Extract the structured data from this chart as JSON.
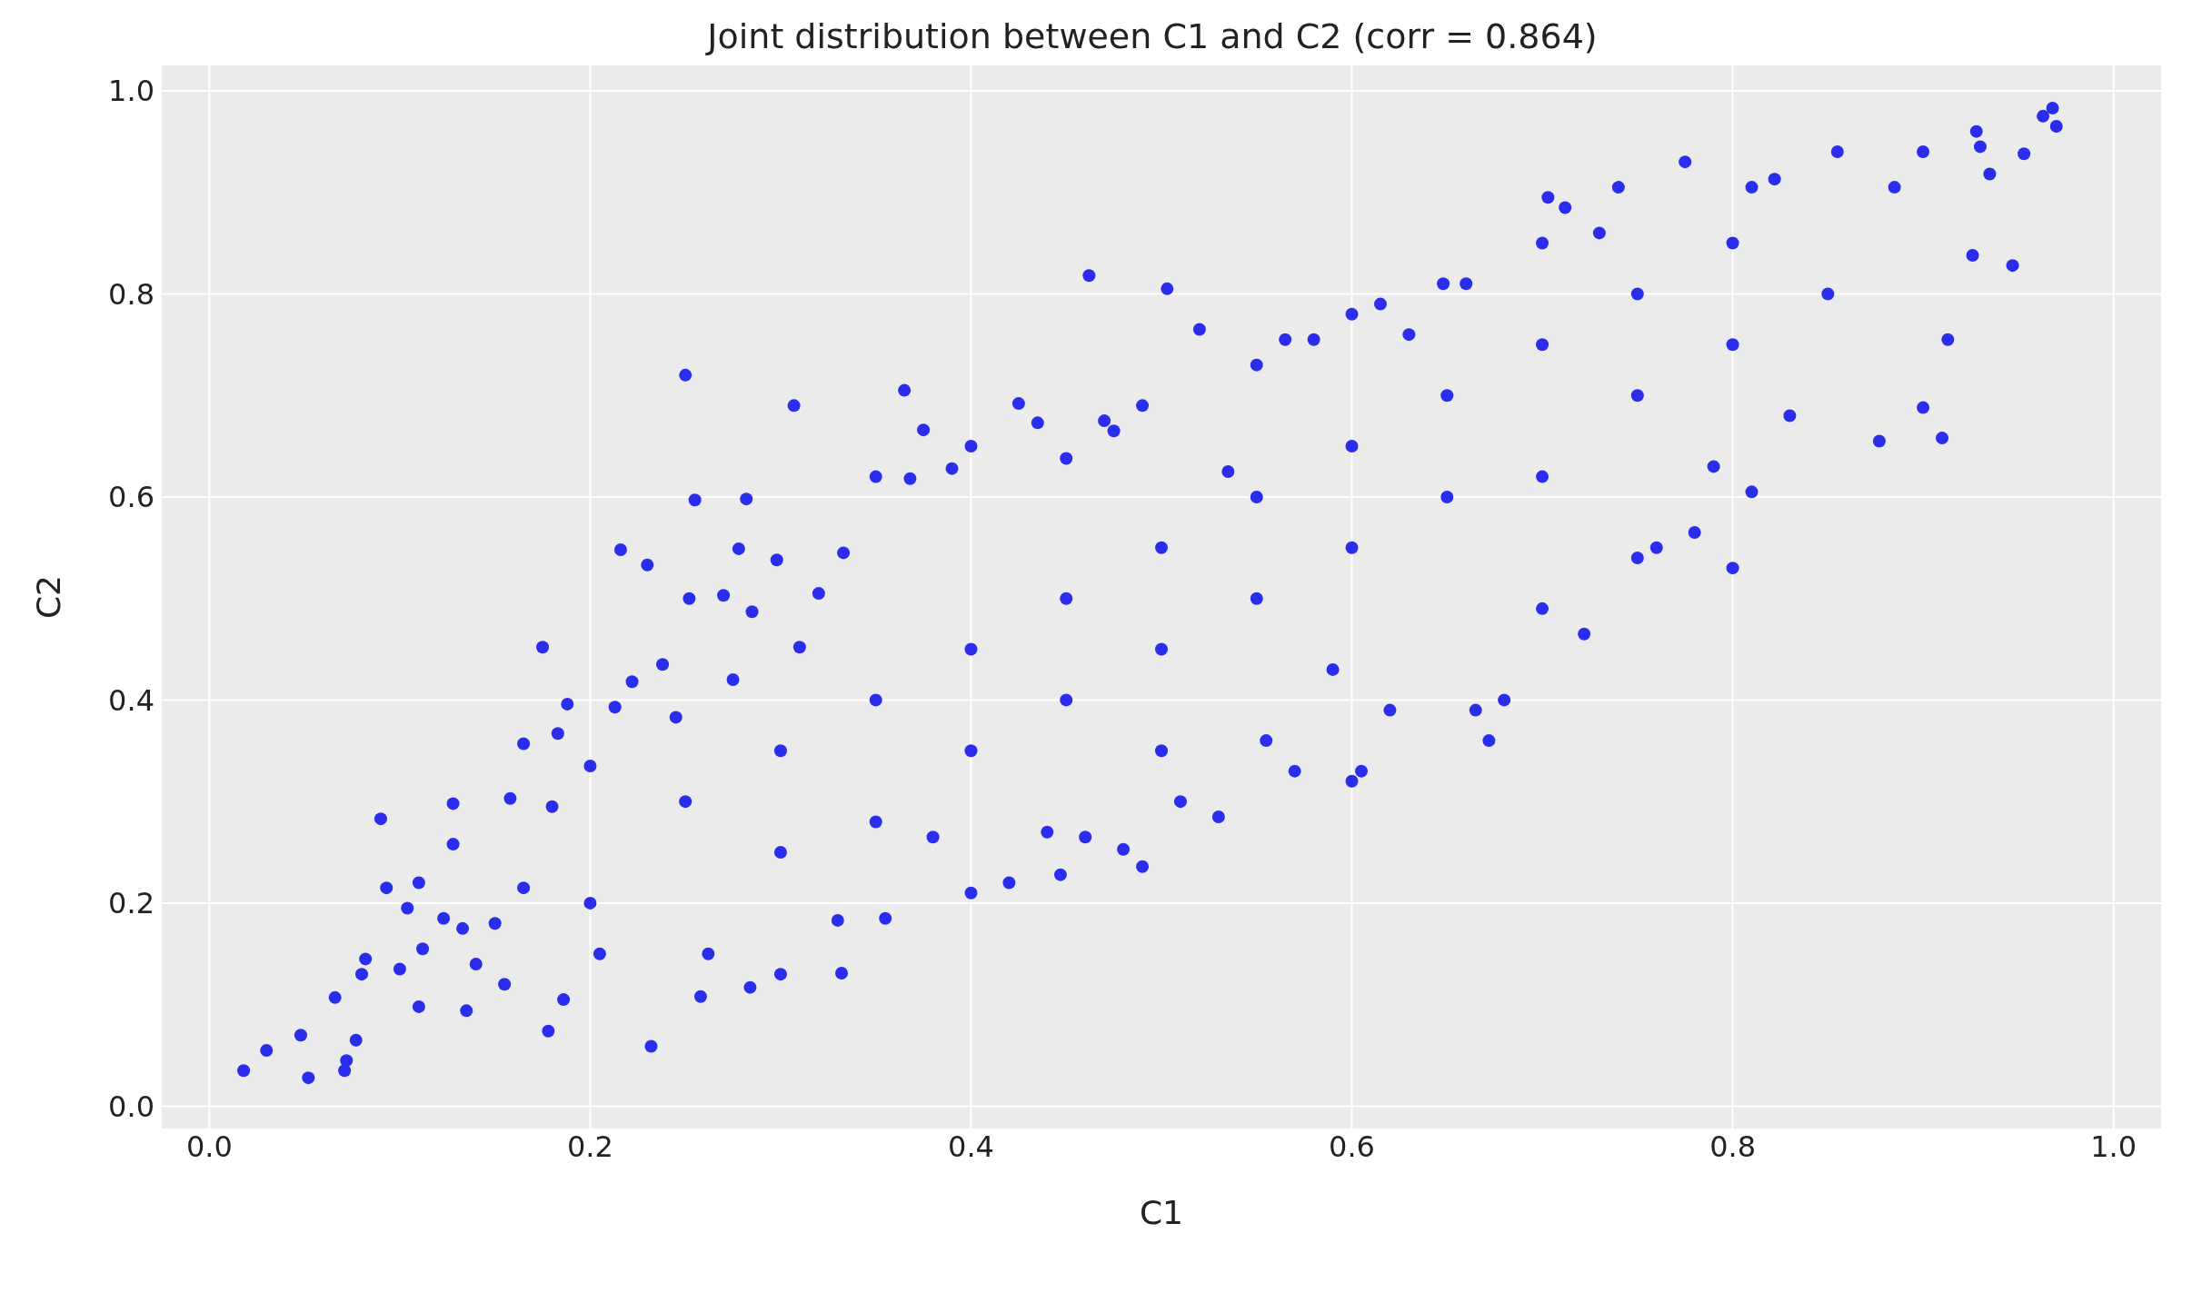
{
  "chart_data": {
    "type": "scatter",
    "title": "Joint distribution between C1 and C2 (corr = 0.864)",
    "xlabel": "C1",
    "ylabel": "C2",
    "xlim": [
      -0.025,
      1.025
    ],
    "ylim": [
      -0.022,
      1.025
    ],
    "xticks": [
      {
        "value": 0,
        "label": "0.0"
      },
      0.2,
      0.4,
      0.6,
      0.8,
      {
        "value": 1,
        "label": "1.0"
      }
    ],
    "yticks": [
      {
        "value": 0,
        "label": "0.0"
      },
      0.2,
      0.4,
      0.6,
      0.8,
      {
        "value": 1,
        "label": "1.0"
      }
    ],
    "grid": true,
    "legend": false,
    "marker": "circle",
    "series": [
      {
        "color": "#2a2eec",
        "x": [
          0.018,
          0.03,
          0.048,
          0.052,
          0.066,
          0.071,
          0.072,
          0.077,
          0.08,
          0.082,
          0.09,
          0.093,
          0.1,
          0.104,
          0.11,
          0.11,
          0.112,
          0.123,
          0.128,
          0.128,
          0.133,
          0.135,
          0.14,
          0.155,
          0.158,
          0.165,
          0.165,
          0.175,
          0.178,
          0.18,
          0.183,
          0.186,
          0.188,
          0.2,
          0.205,
          0.213,
          0.216,
          0.222,
          0.23,
          0.232,
          0.238,
          0.245,
          0.25,
          0.252,
          0.255,
          0.258,
          0.262,
          0.27,
          0.275,
          0.278,
          0.282,
          0.284,
          0.285,
          0.298,
          0.3,
          0.307,
          0.31,
          0.32,
          0.33,
          0.332,
          0.333,
          0.35,
          0.355,
          0.365,
          0.368,
          0.375,
          0.38,
          0.39,
          0.4,
          0.4,
          0.42,
          0.425,
          0.435,
          0.44,
          0.447,
          0.45,
          0.46,
          0.462,
          0.47,
          0.475,
          0.48,
          0.49,
          0.49,
          0.5,
          0.503,
          0.51,
          0.52,
          0.53,
          0.535,
          0.55,
          0.555,
          0.57,
          0.565,
          0.58,
          0.59,
          0.6,
          0.605,
          0.6,
          0.615,
          0.62,
          0.63,
          0.648,
          0.66,
          0.665,
          0.672,
          0.68,
          0.7,
          0.7,
          0.703,
          0.712,
          0.722,
          0.73,
          0.74,
          0.75,
          0.76,
          0.775,
          0.78,
          0.79,
          0.8,
          0.81,
          0.81,
          0.822,
          0.83,
          0.855,
          0.877,
          0.885,
          0.9,
          0.9,
          0.91,
          0.913,
          0.926,
          0.928,
          0.93,
          0.935,
          0.947,
          0.953,
          0.963,
          0.968,
          0.97,
          0.2,
          0.25,
          0.3,
          0.35,
          0.4,
          0.45,
          0.5,
          0.55,
          0.6,
          0.65,
          0.7,
          0.75,
          0.8,
          0.3,
          0.4,
          0.5,
          0.6,
          0.7,
          0.8,
          0.85,
          0.15,
          0.35,
          0.45,
          0.55,
          0.65,
          0.75
        ],
        "values": [
          0.035,
          0.055,
          0.07,
          0.028,
          0.107,
          0.035,
          0.045,
          0.065,
          0.13,
          0.145,
          0.283,
          0.215,
          0.135,
          0.195,
          0.098,
          0.22,
          0.155,
          0.185,
          0.298,
          0.258,
          0.175,
          0.094,
          0.14,
          0.12,
          0.303,
          0.357,
          0.215,
          0.452,
          0.074,
          0.295,
          0.367,
          0.105,
          0.396,
          0.335,
          0.15,
          0.393,
          0.548,
          0.418,
          0.533,
          0.059,
          0.435,
          0.383,
          0.72,
          0.5,
          0.597,
          0.108,
          0.15,
          0.503,
          0.42,
          0.549,
          0.598,
          0.117,
          0.487,
          0.538,
          0.13,
          0.69,
          0.452,
          0.505,
          0.183,
          0.131,
          0.545,
          0.62,
          0.185,
          0.705,
          0.618,
          0.666,
          0.265,
          0.628,
          0.65,
          0.21,
          0.22,
          0.692,
          0.673,
          0.27,
          0.228,
          0.638,
          0.265,
          0.818,
          0.675,
          0.665,
          0.253,
          0.236,
          0.69,
          0.35,
          0.805,
          0.3,
          0.765,
          0.285,
          0.625,
          0.73,
          0.36,
          0.33,
          0.755,
          0.755,
          0.43,
          0.32,
          0.33,
          0.78,
          0.79,
          0.39,
          0.76,
          0.81,
          0.81,
          0.39,
          0.36,
          0.4,
          0.49,
          0.85,
          0.895,
          0.885,
          0.465,
          0.86,
          0.905,
          0.54,
          0.55,
          0.93,
          0.565,
          0.63,
          0.53,
          0.605,
          0.905,
          0.913,
          0.68,
          0.94,
          0.655,
          0.905,
          0.94,
          0.688,
          0.658,
          0.755,
          0.838,
          0.96,
          0.945,
          0.918,
          0.828,
          0.938,
          0.975,
          0.983,
          0.965,
          0.2,
          0.3,
          0.35,
          0.4,
          0.45,
          0.5,
          0.55,
          0.6,
          0.65,
          0.7,
          0.75,
          0.8,
          0.85,
          0.25,
          0.35,
          0.45,
          0.55,
          0.62,
          0.75,
          0.8,
          0.18,
          0.28,
          0.4,
          0.5,
          0.6,
          0.7
        ]
      }
    ]
  }
}
